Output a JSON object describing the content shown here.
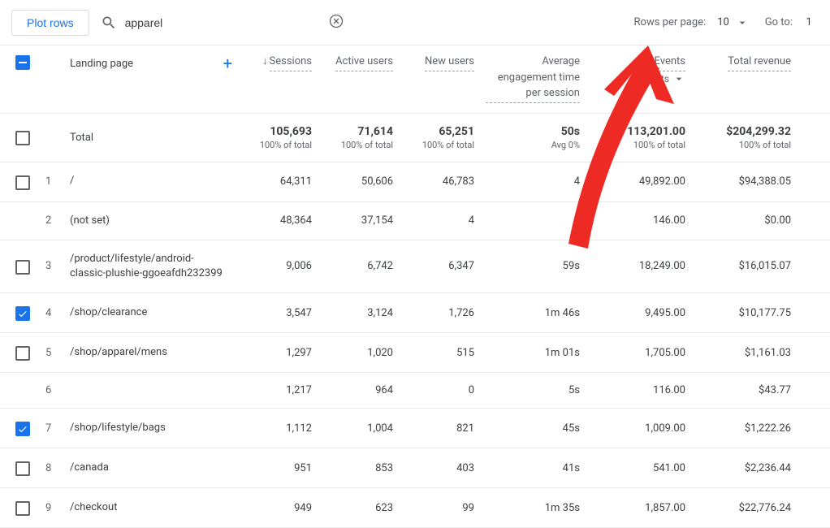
{
  "toolbar": {
    "plot_rows_label": "Plot rows",
    "search_value": "apparel",
    "rows_per_page_label": "Rows per page:",
    "rows_per_page_value": "10",
    "go_to_label": "Go to:",
    "go_to_value": "1"
  },
  "colors": {
    "accent": "#1a73e8",
    "arrow": "#ee2a24",
    "text_muted": "#5f6368",
    "border": "#e8eaed"
  },
  "header": {
    "dimension_label": "Landing page",
    "metrics": [
      {
        "label": "Sessions",
        "sorted_desc": true
      },
      {
        "label": "Active users"
      },
      {
        "label": "New users"
      },
      {
        "label": "Average engagement time per session"
      },
      {
        "label": "Events",
        "sublabel": "ents"
      },
      {
        "label": "Total revenue"
      }
    ]
  },
  "totals": {
    "label": "Total",
    "cells": [
      {
        "value": "105,693",
        "sub": "100% of total"
      },
      {
        "value": "71,614",
        "sub": "100% of total"
      },
      {
        "value": "65,251",
        "sub": "100% of total"
      },
      {
        "value": "50s",
        "sub": "Avg 0%"
      },
      {
        "value": "113,201.00",
        "sub": "100% of total"
      },
      {
        "value": "$204,299.32",
        "sub": "100% of total"
      }
    ]
  },
  "rows": [
    {
      "idx": "1",
      "checkbox": "unchecked",
      "dim": "/",
      "cells": [
        "64,311",
        "50,606",
        "46,783",
        "4",
        "49,892.00",
        "$94,388.05"
      ]
    },
    {
      "idx": "2",
      "checkbox": "none",
      "dim": "(not set)",
      "cells": [
        "48,364",
        "37,154",
        "4",
        "s",
        "146.00",
        "$0.00"
      ]
    },
    {
      "idx": "3",
      "checkbox": "unchecked",
      "dim": "/product/lifestyle/android-classic-plushie-ggoeafdh232399",
      "cells": [
        "9,006",
        "6,742",
        "6,347",
        "59s",
        "18,249.00",
        "$16,015.07"
      ]
    },
    {
      "idx": "4",
      "checkbox": "checked",
      "dim": "/shop/clearance",
      "cells": [
        "3,547",
        "3,124",
        "1,726",
        "1m 46s",
        "9,495.00",
        "$10,177.75"
      ]
    },
    {
      "idx": "5",
      "checkbox": "unchecked",
      "dim": "/shop/apparel/mens",
      "cells": [
        "1,297",
        "1,020",
        "515",
        "1m 01s",
        "1,705.00",
        "$1,161.03"
      ]
    },
    {
      "idx": "6",
      "checkbox": "none",
      "dim": "",
      "cells": [
        "1,217",
        "964",
        "0",
        "5s",
        "116.00",
        "$43.77"
      ]
    },
    {
      "idx": "7",
      "checkbox": "checked",
      "dim": "/shop/lifestyle/bags",
      "cells": [
        "1,112",
        "1,004",
        "821",
        "45s",
        "1,009.00",
        "$1,222.26"
      ]
    },
    {
      "idx": "8",
      "checkbox": "unchecked",
      "dim": "/canada",
      "cells": [
        "951",
        "853",
        "403",
        "41s",
        "541.00",
        "$2,236.44"
      ]
    },
    {
      "idx": "9",
      "checkbox": "unchecked",
      "dim": "/checkout",
      "cells": [
        "949",
        "623",
        "99",
        "1m 35s",
        "1,857.00",
        "$22,776.24"
      ]
    }
  ]
}
